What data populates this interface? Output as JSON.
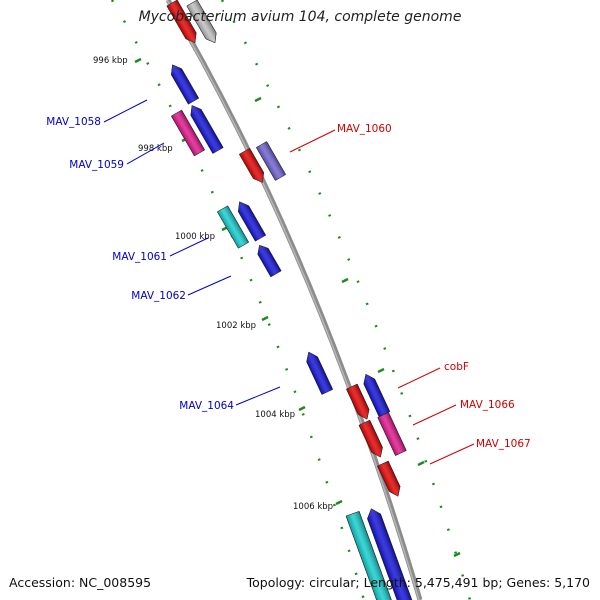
{
  "title": "Mycobacterium avium 104, complete genome",
  "footer": {
    "accession": "Accession: NC_008595",
    "topology": "Topology: circular; Length: 5,475,491 bp; Genes: 5,170"
  },
  "colors": {
    "backbone": "#8c8c8c",
    "ticks": "#1f8a1f",
    "minus_strand_labels": "#0000c8",
    "plus_strand_labels": "#d00000",
    "gene_red": "#e30000",
    "gene_blue": "#1010d8",
    "gene_magenta": "#e0148c",
    "gene_cyan": "#12cccc",
    "gene_slate": "#6f5fd0",
    "gene_gray": "#bdbdbd"
  },
  "position_marks": [
    {
      "label": "996 kbp"
    },
    {
      "label": "998 kbp"
    },
    {
      "label": "1000 kbp"
    },
    {
      "label": "1002 kbp"
    },
    {
      "label": "1004 kbp"
    },
    {
      "label": "1006 kbp"
    }
  ],
  "gene_labels": [
    {
      "text": "MAV_1058",
      "strand": "minus"
    },
    {
      "text": "MAV_1059",
      "strand": "minus"
    },
    {
      "text": "MAV_1061",
      "strand": "minus"
    },
    {
      "text": "MAV_1062",
      "strand": "minus"
    },
    {
      "text": "MAV_1064",
      "strand": "minus"
    },
    {
      "text": "MAV_1060",
      "strand": "plus"
    },
    {
      "text": "cobF",
      "strand": "plus"
    },
    {
      "text": "MAV_1066",
      "strand": "plus"
    },
    {
      "text": "MAV_1067",
      "strand": "plus"
    }
  ]
}
